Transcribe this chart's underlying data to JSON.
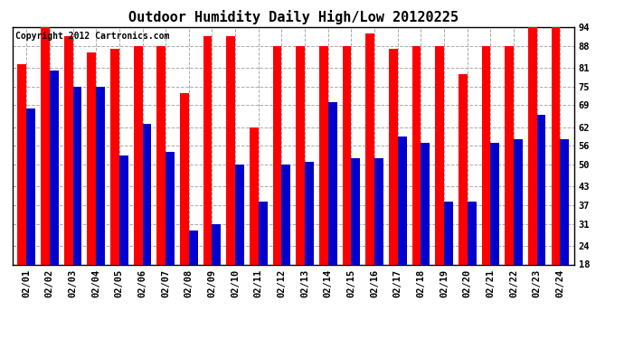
{
  "title": "Outdoor Humidity Daily High/Low 20120225",
  "copyright": "Copyright 2012 Cartronics.com",
  "dates": [
    "02/01",
    "02/02",
    "02/03",
    "02/04",
    "02/05",
    "02/06",
    "02/07",
    "02/08",
    "02/09",
    "02/10",
    "02/11",
    "02/12",
    "02/13",
    "02/14",
    "02/15",
    "02/16",
    "02/17",
    "02/18",
    "02/19",
    "02/20",
    "02/21",
    "02/22",
    "02/23",
    "02/24"
  ],
  "highs": [
    82,
    94,
    91,
    86,
    87,
    88,
    88,
    73,
    91,
    91,
    62,
    88,
    88,
    88,
    88,
    92,
    87,
    88,
    88,
    79,
    88,
    88,
    94,
    94
  ],
  "lows": [
    68,
    80,
    75,
    75,
    53,
    63,
    54,
    29,
    31,
    50,
    38,
    50,
    51,
    70,
    52,
    52,
    59,
    57,
    38,
    38,
    57,
    58,
    66,
    58
  ],
  "ylim_min": 18,
  "ylim_max": 94,
  "yticks": [
    18,
    24,
    31,
    37,
    43,
    50,
    56,
    62,
    69,
    75,
    81,
    88,
    94
  ],
  "bar_width": 0.38,
  "high_color": "#ff0000",
  "low_color": "#0000cc",
  "bg_color": "#ffffff",
  "grid_color": "#aaaaaa",
  "title_fontsize": 11,
  "tick_fontsize": 7.5,
  "copyright_fontsize": 7
}
